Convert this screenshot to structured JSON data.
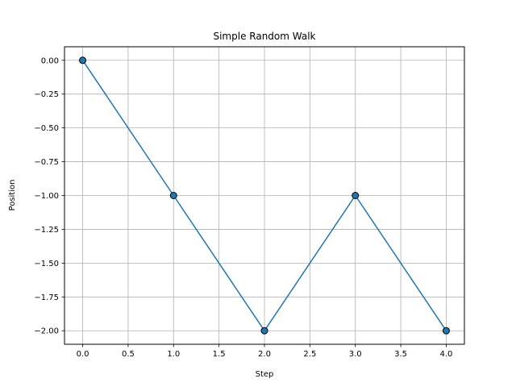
{
  "chart_data": {
    "type": "line",
    "title": "Simple Random Walk",
    "xlabel": "Step",
    "ylabel": "Position",
    "xlim": [
      -0.2,
      4.2
    ],
    "ylim": [
      -2.1,
      0.1
    ],
    "x_ticks": [
      0.0,
      0.5,
      1.0,
      1.5,
      2.0,
      2.5,
      3.0,
      3.5,
      4.0
    ],
    "x_tick_labels": [
      "0.0",
      "0.5",
      "1.0",
      "1.5",
      "2.0",
      "2.5",
      "3.0",
      "3.5",
      "4.0"
    ],
    "y_ticks": [
      0.0,
      -0.25,
      -0.5,
      -0.75,
      -1.0,
      -1.25,
      -1.5,
      -1.75,
      -2.0
    ],
    "y_tick_labels": [
      "0.00",
      "−0.25",
      "−0.50",
      "−0.75",
      "−1.00",
      "−1.25",
      "−1.50",
      "−1.75",
      "−2.00"
    ],
    "grid": true,
    "series": [
      {
        "x": [
          0,
          1,
          2,
          3,
          4
        ],
        "y": [
          0,
          -1,
          -2,
          -1,
          -2
        ],
        "color": "#1f77b4",
        "marker": "circle",
        "marker_edge_color": "#000000"
      }
    ]
  }
}
